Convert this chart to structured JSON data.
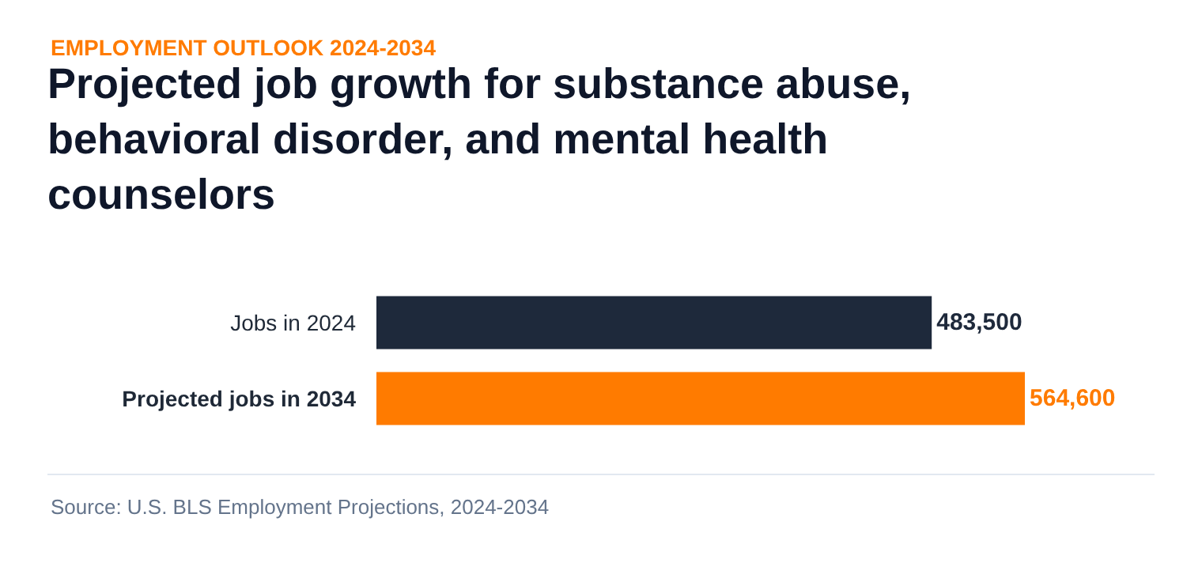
{
  "chart_data": {
    "type": "bar",
    "orientation": "horizontal",
    "subtitle": "EMPLOYMENT OUTLOOK 2024-2034",
    "title": "Projected job growth for substance abuse, behavioral disorder, and mental health counselors",
    "categories": [
      "Jobs in 2024",
      "Projected jobs in 2034"
    ],
    "values": [
      483500,
      564600
    ],
    "colors": [
      "#1e293b",
      "#ff7b00"
    ],
    "value_labels": [
      "483,500",
      "564,600"
    ],
    "annotations": [
      "Source: U.S. BLS Employment Projections, 2024-2034"
    ],
    "legend": false
  }
}
